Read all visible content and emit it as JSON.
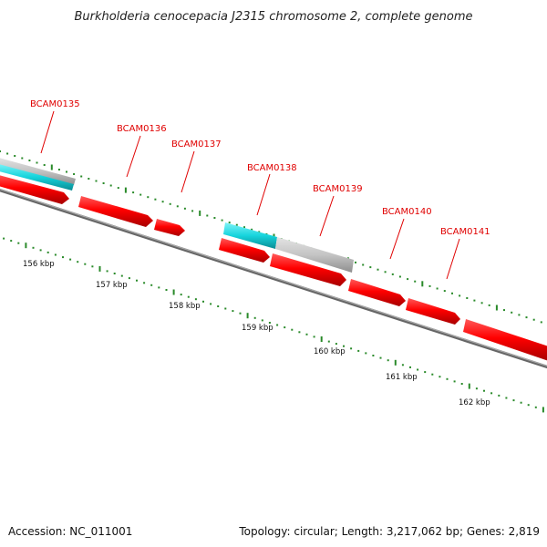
{
  "title": "Burkholderia cenocepacia J2315 chromosome 2, complete genome",
  "accession": "Accession: NC_011001",
  "summary": "Topology: circular; Length: 3,217,062 bp; Genes: 2,819",
  "genes": [
    {
      "label": "BCAM0135",
      "strand": "reverse",
      "color": "red"
    },
    {
      "label": "BCAM0136",
      "strand": "reverse",
      "color": "red"
    },
    {
      "label": "BCAM0137",
      "strand": "reverse",
      "color": "red"
    },
    {
      "label": "BCAM0138",
      "strand": "reverse",
      "color": "red"
    },
    {
      "label": "BCAM0139",
      "strand": "reverse",
      "color": "red"
    },
    {
      "label": "BCAM0140",
      "strand": "reverse",
      "color": "red"
    },
    {
      "label": "BCAM0141",
      "strand": "reverse",
      "color": "red"
    }
  ],
  "ticks": [
    "156 kbp",
    "157 kbp",
    "158 kbp",
    "159 kbp",
    "160 kbp",
    "161 kbp",
    "162 kbp"
  ],
  "colors": {
    "gene": "#ff0000",
    "feature_cyan": "#16d4dc",
    "feature_gray": "#c0c0c0",
    "backbone": "#8a8a8a",
    "tick": "#2a8a2a",
    "label": "#e00000"
  }
}
